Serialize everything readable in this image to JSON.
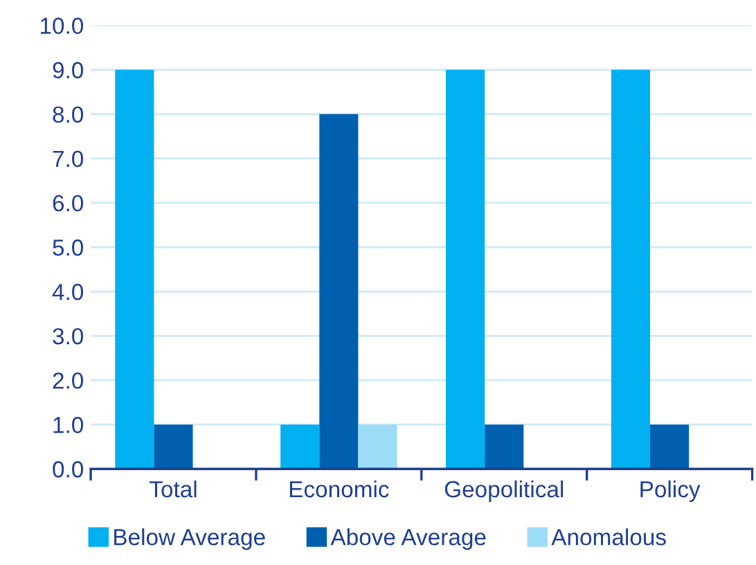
{
  "chart_data": {
    "type": "bar",
    "categories": [
      "Total",
      "Economic",
      "Geopolitical",
      "Policy"
    ],
    "series": [
      {
        "name": "Below Average",
        "color": "#00b0f0",
        "values": [
          9,
          1,
          9,
          9
        ]
      },
      {
        "name": "Above Average",
        "color": "#0060b0",
        "values": [
          1,
          8,
          1,
          1
        ]
      },
      {
        "name": "Anomalous",
        "color": "#9cdcf6",
        "values": [
          0,
          1,
          0,
          0
        ]
      }
    ],
    "ylim": [
      0,
      10
    ],
    "yticks": [
      {
        "value": 0,
        "label": "0.0"
      },
      {
        "value": 1,
        "label": "1.0"
      },
      {
        "value": 2,
        "label": "2.0"
      },
      {
        "value": 3,
        "label": "3.0"
      },
      {
        "value": 4,
        "label": "4.0"
      },
      {
        "value": 5,
        "label": "5.0"
      },
      {
        "value": 6,
        "label": "6.0"
      },
      {
        "value": 7,
        "label": "7.0"
      },
      {
        "value": 8,
        "label": "8.0"
      },
      {
        "value": 9,
        "label": "9.0"
      },
      {
        "value": 10,
        "label": "10.0"
      }
    ],
    "grid": "y",
    "legend": "bottom"
  }
}
